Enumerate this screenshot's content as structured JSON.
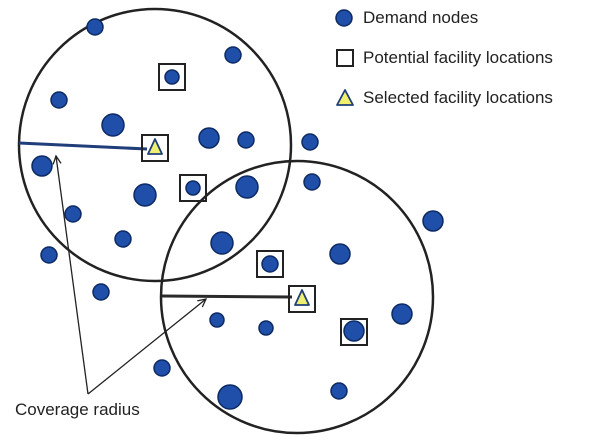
{
  "legend": {
    "demand": "Demand nodes",
    "potential": "Potential facility locations",
    "selected": "Selected facility locations"
  },
  "callout": {
    "coverage_radius": "Coverage radius"
  },
  "colors": {
    "node_fill": "#1f4fa8",
    "node_stroke": "#0d2a63",
    "facility_triangle": "#f0f070",
    "radius_line_blue": "#1f3e7a",
    "radius_line_dark": "#2a2a2a"
  }
}
